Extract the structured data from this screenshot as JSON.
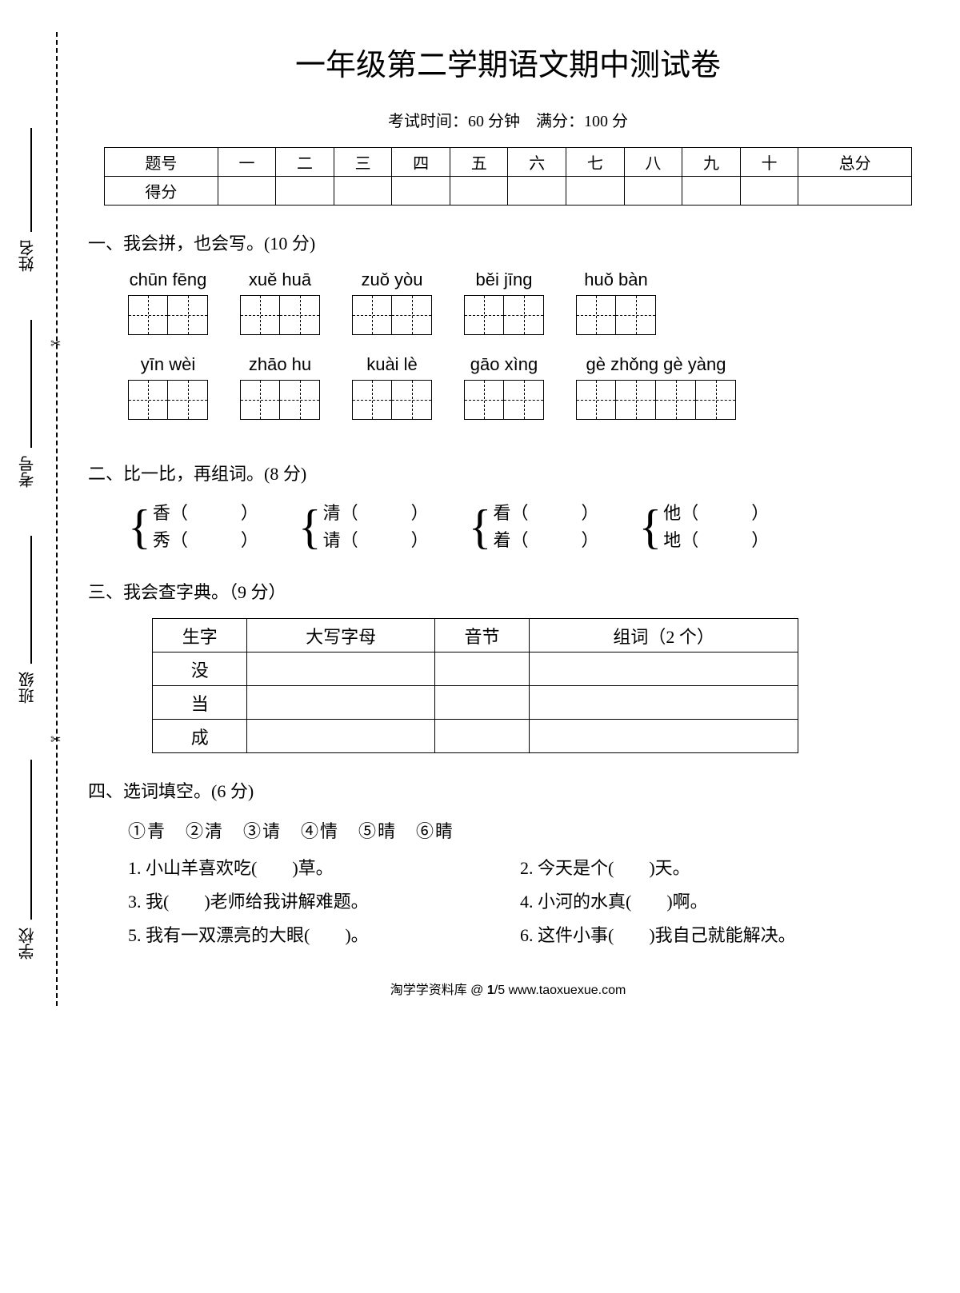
{
  "title": "一年级第二学期语文期中测试卷",
  "subtitle": "考试时间：60 分钟　满分：100 分",
  "sidebar": {
    "labels": [
      "姓名",
      "考号",
      "班级",
      "学校"
    ],
    "scissor_glyph": "✂"
  },
  "score_table": {
    "row_labels": [
      "题号",
      "得分"
    ],
    "columns": [
      "一",
      "二",
      "三",
      "四",
      "五",
      "六",
      "七",
      "八",
      "九",
      "十",
      "总分"
    ]
  },
  "q1": {
    "heading": "一、我会拼，也会写。(10 分)",
    "rows": [
      [
        {
          "pinyin": "chūn fēng",
          "boxes": 2
        },
        {
          "pinyin": "xuě  huā",
          "boxes": 2
        },
        {
          "pinyin": "zuǒ  yòu",
          "boxes": 2
        },
        {
          "pinyin": "běi   jīng",
          "boxes": 2
        },
        {
          "pinyin": "huǒ  bàn",
          "boxes": 2
        }
      ],
      [
        {
          "pinyin": "yīn   wèi",
          "boxes": 2
        },
        {
          "pinyin": "zhāo  hu",
          "boxes": 2
        },
        {
          "pinyin": "kuài   lè",
          "boxes": 2
        },
        {
          "pinyin": "gāo  xìng",
          "boxes": 2
        },
        {
          "pinyin": "gè  zhǒng  gè  yàng",
          "boxes": 4
        }
      ]
    ]
  },
  "q2": {
    "heading": "二、比一比，再组词。(8 分)",
    "pairs": [
      {
        "a": "香（　　　）",
        "b": "秀（　　　）"
      },
      {
        "a": "清（　　　）",
        "b": "请（　　　）"
      },
      {
        "a": "看（　　　）",
        "b": "着（　　　）"
      },
      {
        "a": "他（　　　）",
        "b": "地（　　　）"
      }
    ]
  },
  "q3": {
    "heading": "三、我会查字典。（9 分）",
    "columns": [
      "生字",
      "大写字母",
      "音节",
      "组词（2 个）"
    ],
    "rows": [
      "没",
      "当",
      "成"
    ]
  },
  "q4": {
    "heading": "四、选词填空。(6 分)",
    "options": "①青　②清　③请　④情　⑤晴　⑥睛",
    "sentences": [
      "1. 小山羊喜欢吃(　　)草。",
      "2. 今天是个(　　)天。",
      "3. 我(　　)老师给我讲解难题。",
      "4. 小河的水真(　　)啊。",
      "5. 我有一双漂亮的大眼(　　)。",
      "6. 这件小事(　　)我自己就能解决。"
    ]
  },
  "footer": {
    "left": "淘学学资料库 @ ",
    "url": "www.taoxuexue.com",
    "page": "1",
    "total": "5"
  }
}
